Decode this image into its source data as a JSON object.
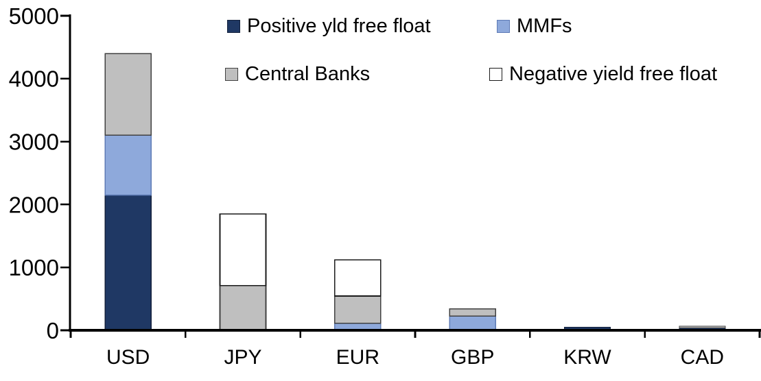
{
  "chart_data": {
    "type": "bar",
    "stacked": true,
    "title": "",
    "categories": [
      "USD",
      "JPY",
      "EUR",
      "GBP",
      "KRW",
      "CAD"
    ],
    "series": [
      {
        "name": "Positive yld free float",
        "color": "#1f3864",
        "border": "#14213c",
        "values": [
          2150,
          0,
          0,
          0,
          50,
          40
        ]
      },
      {
        "name": "MMFs",
        "color": "#8ea9db",
        "border": "#5d7ab5",
        "values": [
          950,
          0,
          110,
          225,
          0,
          0
        ]
      },
      {
        "name": "Central Banks",
        "color": "#bfbfbf",
        "border": "#404040",
        "values": [
          1300,
          710,
          435,
          115,
          0,
          25
        ]
      },
      {
        "name": "Negative yield free float",
        "color": "#ffffff",
        "border": "#1a1a1a",
        "values": [
          0,
          1140,
          575,
          0,
          0,
          0
        ]
      }
    ],
    "xlabel": "",
    "ylabel": "",
    "ylim": [
      0,
      5000
    ],
    "yticks": [
      0,
      1000,
      2000,
      3000,
      4000,
      5000
    ],
    "grid": false,
    "legend_position": "top",
    "axis_color": "#000000",
    "text_color": "#000000"
  }
}
